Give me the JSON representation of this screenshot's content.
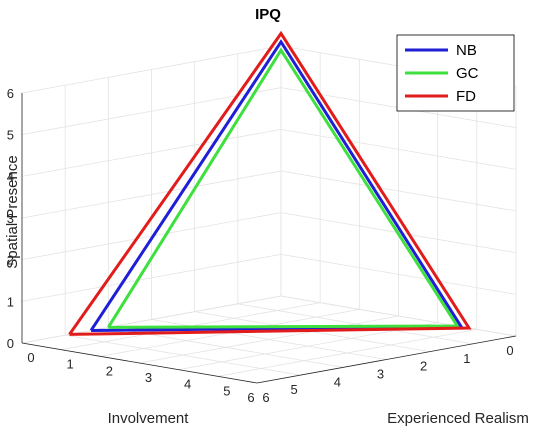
{
  "chart_data": {
    "type": "line",
    "title": "IPQ",
    "xlabel": "Involvement",
    "ylabel": "Experienced Realism",
    "zlabel": "Spatial Presence",
    "xlim": [
      0,
      6
    ],
    "ylim": [
      0,
      6
    ],
    "zlim": [
      0,
      6
    ],
    "x_ticks": [
      "0",
      "1",
      "2",
      "3",
      "4",
      "5",
      "6"
    ],
    "y_ticks": [
      "0",
      "1",
      "2",
      "3",
      "4",
      "5",
      "6"
    ],
    "z_ticks": [
      "0",
      "1",
      "2",
      "3",
      "4",
      "5",
      "6"
    ],
    "grid": true,
    "legend_position": "top-right",
    "series": [
      {
        "name": "NB",
        "color": "#1f1fd6",
        "x": [
          4.4,
          0,
          0,
          4.4
        ],
        "y": [
          0,
          4.6,
          0,
          0
        ],
        "z": [
          0,
          0,
          6.1,
          0
        ]
      },
      {
        "name": "GC",
        "color": "#3ee03e",
        "x": [
          4.0,
          0,
          0,
          4.0
        ],
        "y": [
          0,
          4.5,
          0,
          0
        ],
        "z": [
          0,
          0,
          5.9,
          0
        ]
      },
      {
        "name": "FD",
        "color": "#e21b1b",
        "x": [
          4.9,
          0,
          0,
          4.9
        ],
        "y": [
          0,
          4.8,
          0,
          0
        ],
        "z": [
          0,
          0,
          6.3,
          0
        ]
      }
    ]
  }
}
